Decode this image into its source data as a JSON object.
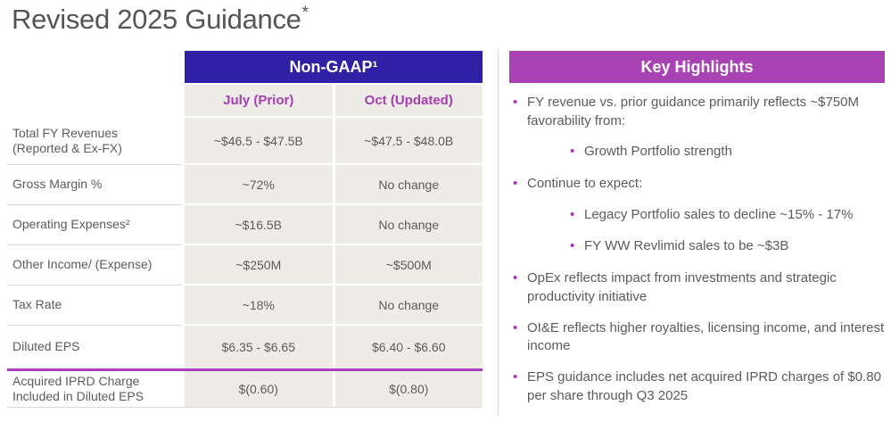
{
  "slide": {
    "title": "Revised 2025 Guidance",
    "title_footnote": "*"
  },
  "table": {
    "header": "Non-GAAP¹",
    "col_headers": [
      "July (Prior)",
      "Oct (Updated)"
    ],
    "rows": [
      {
        "label": "Total FY Revenues (Reported & Ex-FX)",
        "july": "~$46.5 - $47.5B",
        "oct": "~$47.5 - $48.0B"
      },
      {
        "label": "Gross Margin %",
        "july": "~72%",
        "oct": "No change"
      },
      {
        "label": "Operating Expenses²",
        "july": "~$16.5B",
        "oct": "No change"
      },
      {
        "label": "Other Income/ (Expense)",
        "july": "~$250M",
        "oct": "~$500M"
      },
      {
        "label": "Tax Rate",
        "july": "~18%",
        "oct": "No change"
      },
      {
        "label": "Diluted EPS",
        "july": "$6.35 - $6.65",
        "oct": "$6.40 - $6.60"
      },
      {
        "label": "Acquired IPRD Charge Included in Diluted EPS",
        "july": "$(0.60)",
        "oct": "$(0.80)"
      }
    ]
  },
  "highlights": {
    "title": "Key Highlights",
    "bullets": [
      {
        "level": 1,
        "text": "FY revenue vs. prior guidance primarily reflects ~$750M favorability from:"
      },
      {
        "level": 2,
        "text": "Growth Portfolio strength"
      },
      {
        "level": 1,
        "text": "Continue to expect:"
      },
      {
        "level": 2,
        "text": "Legacy Portfolio sales to decline ~15% - 17%"
      },
      {
        "level": 2,
        "text": "FY WW Revlimid sales to be ~$3B"
      },
      {
        "level": 1,
        "text": "OpEx reflects impact from investments and strategic productivity initiative"
      },
      {
        "level": 1,
        "text": "OI&E reflects higher royalties, licensing income, and interest income"
      },
      {
        "level": 1,
        "text": "EPS guidance includes net acquired IPRD charges of $0.80 per share through Q3 2025"
      }
    ]
  },
  "colors": {
    "table_header_bg": "#2e21a6",
    "highlights_header_bg": "#a943b5",
    "column_header_text": "#a83cb3",
    "accent_line": "#a93fc0",
    "cell_bg": "#eeece7",
    "body_text": "#5e5a5a"
  }
}
